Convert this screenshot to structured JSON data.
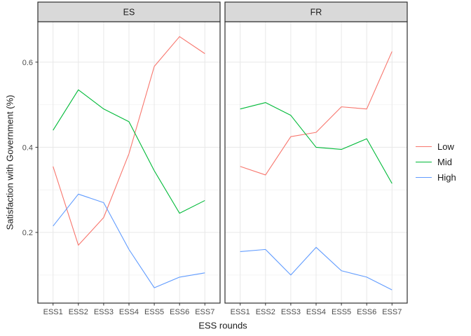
{
  "chart_data": {
    "type": "line",
    "title": "",
    "xlabel": "ESS rounds",
    "ylabel": "Satisfaction with Government (%)",
    "categories": [
      "ESS1",
      "ESS2",
      "ESS3",
      "ESS4",
      "ESS5",
      "ESS6",
      "ESS7"
    ],
    "facets": [
      {
        "label": "ES",
        "series": [
          {
            "name": "Low",
            "color": "#F8766D",
            "values": [
              0.355,
              0.17,
              0.235,
              0.385,
              0.59,
              0.66,
              0.62
            ]
          },
          {
            "name": "Mid",
            "color": "#00BA38",
            "values": [
              0.44,
              0.535,
              0.49,
              0.46,
              0.345,
              0.245,
              0.275
            ]
          },
          {
            "name": "High",
            "color": "#619CFF",
            "values": [
              0.215,
              0.29,
              0.27,
              0.16,
              0.07,
              0.095,
              0.105
            ]
          }
        ]
      },
      {
        "label": "FR",
        "series": [
          {
            "name": "Low",
            "color": "#F8766D",
            "values": [
              0.355,
              0.335,
              0.425,
              0.435,
              0.495,
              0.49,
              0.625
            ]
          },
          {
            "name": "Mid",
            "color": "#00BA38",
            "values": [
              0.49,
              0.505,
              0.475,
              0.4,
              0.395,
              0.42,
              0.315
            ]
          },
          {
            "name": "High",
            "color": "#619CFF",
            "values": [
              0.155,
              0.16,
              0.1,
              0.165,
              0.11,
              0.095,
              0.065
            ]
          }
        ]
      }
    ],
    "ylim": [
      0.034,
      0.695
    ],
    "y_major_ticks": [
      0.2,
      0.4,
      0.6
    ],
    "y_tick_labels": [
      "0.2",
      "0.4",
      "0.6"
    ],
    "y_minor_gridlines": [
      0.1,
      0.3,
      0.5
    ],
    "grid": true,
    "legend": {
      "position": "right",
      "entries": [
        {
          "label": "Low",
          "color": "#F8766D"
        },
        {
          "label": "Mid",
          "color": "#00BA38"
        },
        {
          "label": "High",
          "color": "#619CFF"
        }
      ]
    }
  },
  "colors": {
    "strip_fill": "#d9d9d9",
    "panel_border": "#2e2e2e",
    "grid_major": "#e8e8e8",
    "grid_minor": "#f4f4f4",
    "tick_mark": "#333333",
    "tick_label": "#4d4d4d",
    "text": "#1a1a1a"
  }
}
